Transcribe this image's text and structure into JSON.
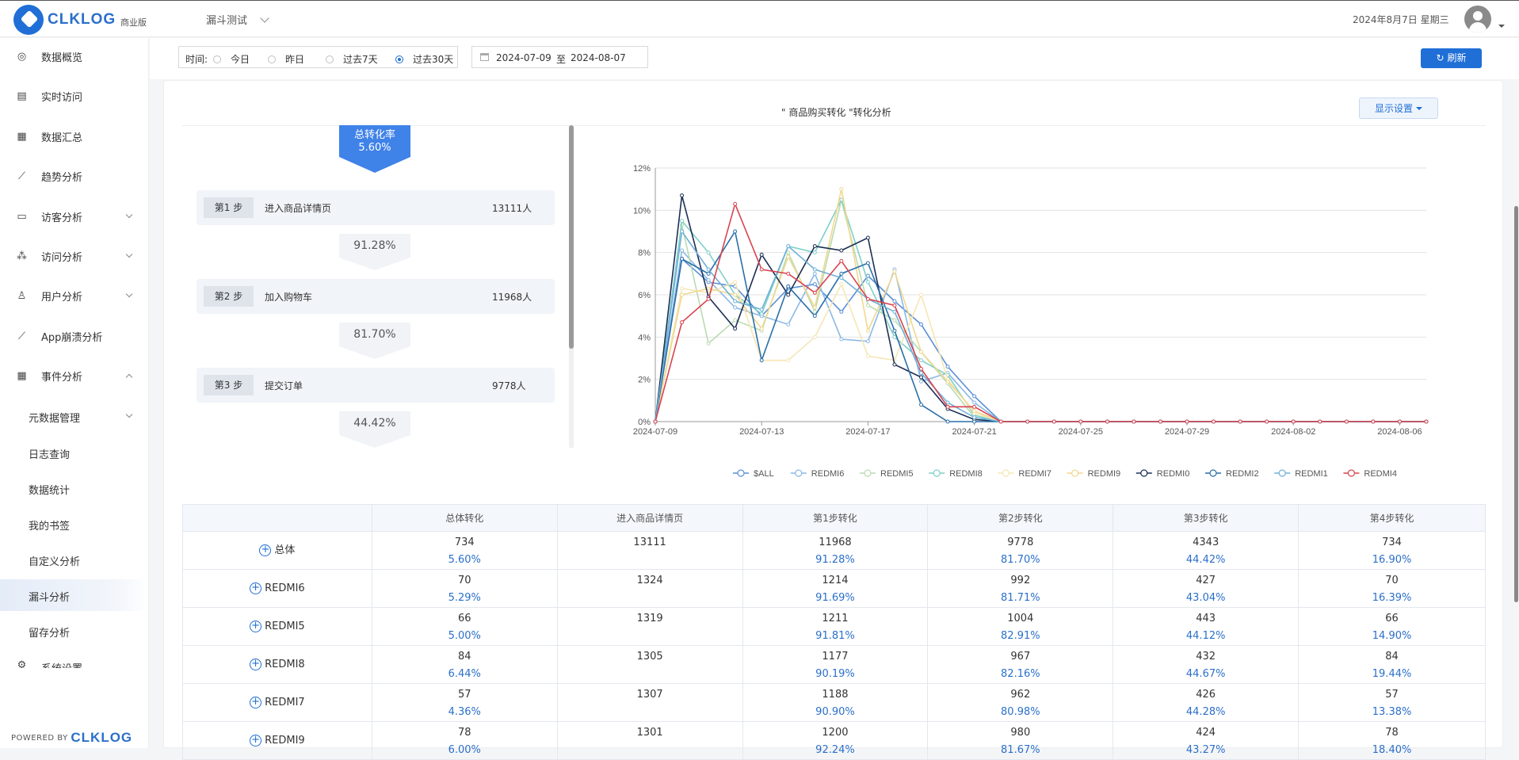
{
  "header": {
    "logo_text": "CLKLOG",
    "edition": "商业版",
    "project": "漏斗测试",
    "date": "2024年8月7日 星期三"
  },
  "sidebar": {
    "items": [
      {
        "label": "数据概览",
        "icon": "dashboard-icon"
      },
      {
        "label": "实时访问",
        "icon": "realtime-icon"
      },
      {
        "label": "数据汇总",
        "icon": "summary-icon"
      },
      {
        "label": "趋势分析",
        "icon": "trend-icon"
      },
      {
        "label": "访客分析",
        "icon": "visitor-icon"
      },
      {
        "label": "访问分析",
        "icon": "visit-icon"
      },
      {
        "label": "用户分析",
        "icon": "user-icon"
      },
      {
        "label": "App崩溃分析",
        "icon": "crash-icon"
      },
      {
        "label": "事件分析",
        "icon": "event-icon"
      }
    ],
    "sub_items": [
      "元数据管理",
      "日志查询",
      "数据统计",
      "我的书签",
      "自定义分析",
      "漏斗分析",
      "留存分析"
    ],
    "partial_item": "系统设置",
    "powered_prefix": "POWERED BY",
    "powered_brand": "CLKLOG"
  },
  "filter": {
    "time_label": "时间:",
    "options": [
      "今日",
      "昨日",
      "过去7天",
      "过去30天"
    ],
    "selected": "过去30天",
    "date_from": "2024-07-09",
    "date_to_sep": "至",
    "date_to": "2024-08-07",
    "refresh_label": "刷新"
  },
  "funnel": {
    "title": "\" 商品购买转化 \"转化分析",
    "display_settings": "显示设置",
    "total_label": "总转化率",
    "total_rate": "5.60%",
    "steps": [
      {
        "tag": "第1 步",
        "name": "进入商品详情页",
        "count": "13111人"
      },
      {
        "tag": "第2 步",
        "name": "加入购物车",
        "count": "11968人"
      },
      {
        "tag": "第3 步",
        "name": "提交订单",
        "count": "9778人"
      }
    ],
    "rates": [
      "91.28%",
      "81.70%",
      "44.42%"
    ]
  },
  "chart_data": {
    "type": "line",
    "x": [
      "2024-07-09",
      "2024-07-10",
      "2024-07-11",
      "2024-07-12",
      "2024-07-13",
      "2024-07-14",
      "2024-07-15",
      "2024-07-16",
      "2024-07-17",
      "2024-07-18",
      "2024-07-19",
      "2024-07-20",
      "2024-07-21",
      "2024-07-22",
      "2024-07-23",
      "2024-07-24",
      "2024-07-25",
      "2024-07-26",
      "2024-07-27",
      "2024-07-28",
      "2024-07-29",
      "2024-07-30",
      "2024-07-31",
      "2024-08-01",
      "2024-08-02",
      "2024-08-03",
      "2024-08-04",
      "2024-08-05",
      "2024-08-06",
      "2024-08-07"
    ],
    "x_ticks": [
      "2024-07-09",
      "2024-07-13",
      "2024-07-17",
      "2024-07-21",
      "2024-07-25",
      "2024-07-29",
      "2024-08-02",
      "2024-08-06"
    ],
    "y_ticks": [
      "0%",
      "2%",
      "4%",
      "6%",
      "8%",
      "10%",
      "12%"
    ],
    "ylim": [
      0,
      12
    ],
    "grid": true,
    "legend_position": "bottom",
    "series": [
      {
        "name": "$ALL",
        "color": "#5b8fd6",
        "values": [
          0,
          7.7,
          6.6,
          6.4,
          5.0,
          6.3,
          6.5,
          5.2,
          6.9,
          5.7,
          4.6,
          2.6,
          1.2,
          0,
          0,
          0,
          0,
          0,
          0,
          0,
          0,
          0,
          0,
          0,
          0,
          0,
          0,
          0,
          0,
          0
        ]
      },
      {
        "name": "REDMI6",
        "color": "#8ab8e6",
        "values": [
          0,
          8.1,
          6.7,
          5.4,
          5.0,
          4.6,
          7.0,
          3.9,
          3.8,
          7.2,
          1.9,
          2.3,
          0.9,
          0,
          0,
          0,
          0,
          0,
          0,
          0,
          0,
          0,
          0,
          0,
          0,
          0,
          0,
          0,
          0,
          0
        ]
      },
      {
        "name": "REDMI5",
        "color": "#b9dbb0",
        "values": [
          0,
          9.3,
          3.7,
          4.8,
          4.3,
          8.0,
          5.2,
          10.5,
          5.5,
          4.8,
          3.3,
          1.8,
          0.2,
          0,
          0,
          0,
          0,
          0,
          0,
          0,
          0,
          0,
          0,
          0,
          0,
          0,
          0,
          0,
          0,
          0
        ]
      },
      {
        "name": "REDMI8",
        "color": "#7fd0c8",
        "values": [
          0,
          9.5,
          8.0,
          6.0,
          5.1,
          8.3,
          8.0,
          10.5,
          6.6,
          4.0,
          2.9,
          2.2,
          0.3,
          0,
          0,
          0,
          0,
          0,
          0,
          0,
          0,
          0,
          0,
          0,
          0,
          0,
          0,
          0,
          0,
          0
        ]
      },
      {
        "name": "REDMI7",
        "color": "#f6e6b5",
        "values": [
          0,
          6.3,
          6.1,
          6.6,
          2.9,
          2.9,
          4.0,
          6.5,
          3.1,
          2.9,
          6.0,
          2.0,
          0.4,
          0,
          0,
          0,
          0,
          0,
          0,
          0,
          0,
          0,
          0,
          0,
          0,
          0,
          0,
          0,
          0,
          0
        ]
      },
      {
        "name": "REDMI9",
        "color": "#f0d890",
        "values": [
          0,
          6.0,
          6.3,
          6.0,
          4.4,
          7.8,
          5.4,
          11.0,
          4.3,
          7.1,
          3.3,
          1.9,
          0.5,
          0,
          0,
          0,
          0,
          0,
          0,
          0,
          0,
          0,
          0,
          0,
          0,
          0,
          0,
          0,
          0,
          0
        ]
      },
      {
        "name": "REDMI0",
        "color": "#1d2f55",
        "values": [
          0,
          10.7,
          5.9,
          4.4,
          7.9,
          6.0,
          8.3,
          8.1,
          8.7,
          2.7,
          2.1,
          0.6,
          0.1,
          0,
          0,
          0,
          0,
          0,
          0,
          0,
          0,
          0,
          0,
          0,
          0,
          0,
          0,
          0,
          0,
          0
        ]
      },
      {
        "name": "REDMI2",
        "color": "#2a6fa8",
        "values": [
          0,
          7.7,
          7.0,
          9.0,
          2.9,
          6.4,
          5.0,
          7.0,
          7.5,
          4.3,
          0.8,
          0,
          0,
          0,
          0,
          0,
          0,
          0,
          0,
          0,
          0,
          0,
          0,
          0,
          0,
          0,
          0,
          0,
          0,
          0
        ]
      },
      {
        "name": "REDMI1",
        "color": "#6fb0d8",
        "values": [
          0,
          9.0,
          7.2,
          5.7,
          5.3,
          8.3,
          7.2,
          6.8,
          5.8,
          5.2,
          2.3,
          0.9,
          0.2,
          0,
          0,
          0,
          0,
          0,
          0,
          0,
          0,
          0,
          0,
          0,
          0,
          0,
          0,
          0,
          0,
          0
        ]
      },
      {
        "name": "REDMI4",
        "color": "#d9434f",
        "values": [
          0,
          4.7,
          5.8,
          10.3,
          7.2,
          7.0,
          6.1,
          7.6,
          5.8,
          5.5,
          2.5,
          0.7,
          0.7,
          0,
          0,
          0,
          0,
          0,
          0,
          0,
          0,
          0,
          0,
          0,
          0,
          0,
          0,
          0,
          0,
          0
        ]
      }
    ]
  },
  "table": {
    "headers": [
      "",
      "总体转化",
      "进入商品详情页",
      "第1步转化",
      "第2步转化",
      "第3步转化",
      "第4步转化"
    ],
    "rows": [
      {
        "name": "总体",
        "cells": [
          [
            "734",
            "5.60%"
          ],
          [
            "13111",
            ""
          ],
          [
            "11968",
            "91.28%"
          ],
          [
            "9778",
            "81.70%"
          ],
          [
            "4343",
            "44.42%"
          ],
          [
            "734",
            "16.90%"
          ]
        ]
      },
      {
        "name": "REDMI6",
        "cells": [
          [
            "70",
            "5.29%"
          ],
          [
            "1324",
            ""
          ],
          [
            "1214",
            "91.69%"
          ],
          [
            "992",
            "81.71%"
          ],
          [
            "427",
            "43.04%"
          ],
          [
            "70",
            "16.39%"
          ]
        ]
      },
      {
        "name": "REDMI5",
        "cells": [
          [
            "66",
            "5.00%"
          ],
          [
            "1319",
            ""
          ],
          [
            "1211",
            "91.81%"
          ],
          [
            "1004",
            "82.91%"
          ],
          [
            "443",
            "44.12%"
          ],
          [
            "66",
            "14.90%"
          ]
        ]
      },
      {
        "name": "REDMI8",
        "cells": [
          [
            "84",
            "6.44%"
          ],
          [
            "1305",
            ""
          ],
          [
            "1177",
            "90.19%"
          ],
          [
            "967",
            "82.16%"
          ],
          [
            "432",
            "44.67%"
          ],
          [
            "84",
            "19.44%"
          ]
        ]
      },
      {
        "name": "REDMI7",
        "cells": [
          [
            "57",
            "4.36%"
          ],
          [
            "1307",
            ""
          ],
          [
            "1188",
            "90.90%"
          ],
          [
            "962",
            "80.98%"
          ],
          [
            "426",
            "44.28%"
          ],
          [
            "57",
            "13.38%"
          ]
        ]
      },
      {
        "name": "REDMI9",
        "cells": [
          [
            "78",
            "6.00%"
          ],
          [
            "1301",
            ""
          ],
          [
            "1200",
            "92.24%"
          ],
          [
            "980",
            "81.67%"
          ],
          [
            "424",
            "43.27%"
          ],
          [
            "78",
            "18.40%"
          ]
        ]
      }
    ]
  }
}
